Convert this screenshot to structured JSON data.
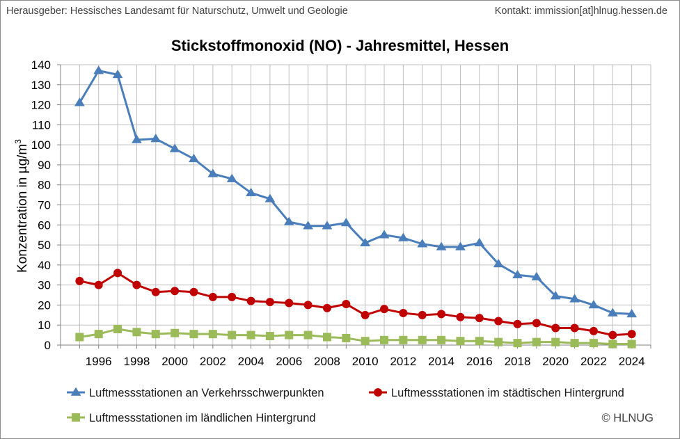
{
  "header": {
    "publisher": "Herausgeber:  Hessisches Landesamt für Naturschutz, Umwelt und Geologie",
    "contact": "Kontakt: immission[at]hlnug.hessen.de"
  },
  "copyright": "© HLNUG",
  "colors": {
    "traffic": "#4a7ebb",
    "urban": "#c00000",
    "rural": "#9bbb59",
    "grid": "#bfbfbf",
    "axis": "#808080"
  },
  "chart_data": {
    "type": "line",
    "title": "Stickstoffmonoxid (NO) - Jahresmittel, Hessen",
    "ylabel": "Konzentration in µg/m³",
    "ylabel_parts": {
      "main": "Konzentration in µg/m",
      "sup": "3"
    },
    "xlabel": "",
    "ylim": [
      0,
      140
    ],
    "yticks": [
      "0",
      "10",
      "20",
      "30",
      "40",
      "50",
      "60",
      "70",
      "80",
      "90",
      "100",
      "110",
      "120",
      "130",
      "140"
    ],
    "xticks": [
      "1996",
      "1998",
      "2000",
      "2002",
      "2004",
      "2006",
      "2008",
      "2010",
      "2012",
      "2014",
      "2016",
      "2018",
      "2020",
      "2022",
      "2024"
    ],
    "x": [
      1995,
      1996,
      1997,
      1998,
      1999,
      2000,
      2001,
      2002,
      2003,
      2004,
      2005,
      2006,
      2007,
      2008,
      2009,
      2010,
      2011,
      2012,
      2013,
      2014,
      2015,
      2016,
      2017,
      2018,
      2019,
      2020,
      2021,
      2022,
      2023,
      2024
    ],
    "series": [
      {
        "name": "Luftmessstationen an Verkehrsschwerpunkten",
        "key": "traffic",
        "marker": "triangle",
        "values": [
          121,
          137,
          135,
          102.5,
          103,
          98,
          93,
          85.5,
          83,
          76,
          73,
          61.5,
          59.5,
          59.5,
          61,
          51,
          55,
          53.5,
          50.5,
          49,
          49,
          51,
          40.5,
          35,
          34,
          24.5,
          23,
          20,
          16,
          15.5
        ]
      },
      {
        "name": "Luftmessstationen im städtischen Hintergrund",
        "key": "urban",
        "marker": "circle",
        "values": [
          32,
          30,
          36,
          30,
          26.5,
          27,
          26.5,
          24,
          24,
          22,
          21.5,
          21,
          20,
          18.5,
          20.5,
          15,
          18,
          16,
          15,
          15.5,
          14,
          13.5,
          12,
          10.5,
          11,
          8.5,
          8.5,
          7,
          5,
          5.5
        ]
      },
      {
        "name": "Luftmessstationen im ländlichen Hintergrund",
        "key": "rural",
        "marker": "square",
        "values": [
          4,
          5.5,
          8,
          6.5,
          5.5,
          6,
          5.5,
          5.5,
          5,
          5,
          4.5,
          5,
          5,
          4,
          3.5,
          2,
          2.5,
          2.5,
          2.5,
          2.5,
          2,
          2,
          1.5,
          1,
          1.5,
          1.5,
          1,
          1,
          0.5,
          0.5
        ]
      }
    ],
    "legend_position": "bottom"
  }
}
